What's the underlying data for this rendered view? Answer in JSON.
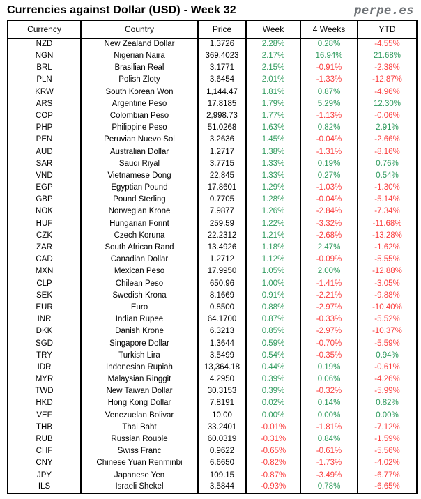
{
  "header": {
    "title": "Currencies against Dollar (USD) - Week 32",
    "brand": "perpe.es"
  },
  "colors": {
    "positive": "#2f9a5d",
    "negative": "#fb3e3e",
    "brand_gray": "#6e7276"
  },
  "chart_data": {
    "type": "table",
    "title": "Currencies against Dollar (USD) - Week 32",
    "columns": [
      "Currency",
      "Country",
      "Price",
      "Week",
      "4 Weeks",
      "YTD"
    ],
    "color_rule": "percent values >= 0 rendered green, < 0 rendered red",
    "rows": [
      [
        "NZD",
        "New Zealand Dollar",
        "1.3726",
        "2.28%",
        "0.28%",
        "-4.55%"
      ],
      [
        "NGN",
        "Nigerian Naira",
        "369.4023",
        "2.17%",
        "16.94%",
        "21.68%"
      ],
      [
        "BRL",
        "Brasilian Real",
        "3.1771",
        "2.15%",
        "-0.91%",
        "-2.38%"
      ],
      [
        "PLN",
        "Polish Zloty",
        "3.6454",
        "2.01%",
        "-1.33%",
        "-12.87%"
      ],
      [
        "KRW",
        "South Korean Won",
        "1,144.47",
        "1.81%",
        "0.87%",
        "-4.96%"
      ],
      [
        "ARS",
        "Argentine Peso",
        "17.8185",
        "1.79%",
        "5.29%",
        "12.30%"
      ],
      [
        "COP",
        "Colombian Peso",
        "2,998.73",
        "1.77%",
        "-1.13%",
        "-0.06%"
      ],
      [
        "PHP",
        "Philippine Peso",
        "51.0268",
        "1.63%",
        "0.82%",
        "2.91%"
      ],
      [
        "PEN",
        "Peruvian Nuevo Sol",
        "3.2636",
        "1.45%",
        "-0.04%",
        "-2.66%"
      ],
      [
        "AUD",
        "Australian Dollar",
        "1.2717",
        "1.38%",
        "-1.31%",
        "-8.16%"
      ],
      [
        "SAR",
        "Saudi Riyal",
        "3.7715",
        "1.33%",
        "0.19%",
        "0.76%"
      ],
      [
        "VND",
        "Vietnamese Dong",
        "22,845",
        "1.33%",
        "0.27%",
        "0.54%"
      ],
      [
        "EGP",
        "Egyptian Pound",
        "17.8601",
        "1.29%",
        "-1.03%",
        "-1.30%"
      ],
      [
        "GBP",
        "Pound Sterling",
        "0.7705",
        "1.28%",
        "-0.04%",
        "-5.14%"
      ],
      [
        "NOK",
        "Norwegian Krone",
        "7.9877",
        "1.26%",
        "-2.84%",
        "-7.34%"
      ],
      [
        "HUF",
        "Hungarian Forint",
        "259.59",
        "1.22%",
        "-3.32%",
        "-11.68%"
      ],
      [
        "CZK",
        "Czech Koruna",
        "22.2312",
        "1.21%",
        "-2.68%",
        "-13.28%"
      ],
      [
        "ZAR",
        "South African Rand",
        "13.4926",
        "1.18%",
        "2.47%",
        "-1.62%"
      ],
      [
        "CAD",
        "Canadian Dollar",
        "1.2712",
        "1.12%",
        "-0.09%",
        "-5.55%"
      ],
      [
        "MXN",
        "Mexican Peso",
        "17.9950",
        "1.05%",
        "2.00%",
        "-12.88%"
      ],
      [
        "CLP",
        "Chilean Peso",
        "650.96",
        "1.00%",
        "-1.41%",
        "-3.05%"
      ],
      [
        "SEK",
        "Swedish Krona",
        "8.1669",
        "0.91%",
        "-2.21%",
        "-9.88%"
      ],
      [
        "EUR",
        "Euro",
        "0.8500",
        "0.88%",
        "-2.97%",
        "-10.40%"
      ],
      [
        "INR",
        "Indian Rupee",
        "64.1700",
        "0.87%",
        "-0.33%",
        "-5.52%"
      ],
      [
        "DKK",
        "Danish Krone",
        "6.3213",
        "0.85%",
        "-2.97%",
        "-10.37%"
      ],
      [
        "SGD",
        "Singapore Dollar",
        "1.3644",
        "0.59%",
        "-0.70%",
        "-5.59%"
      ],
      [
        "TRY",
        "Turkish Lira",
        "3.5499",
        "0.54%",
        "-0.35%",
        "0.94%"
      ],
      [
        "IDR",
        "Indonesian Rupiah",
        "13,364.18",
        "0.44%",
        "0.19%",
        "-0.61%"
      ],
      [
        "MYR",
        "Malaysian Ringgit",
        "4.2950",
        "0.39%",
        "0.06%",
        "-4.26%"
      ],
      [
        "TWD",
        "New Taiwan Dollar",
        "30.3153",
        "0.39%",
        "-0.32%",
        "-5.99%"
      ],
      [
        "HKD",
        "Hong Kong Dollar",
        "7.8191",
        "0.02%",
        "0.14%",
        "0.82%"
      ],
      [
        "VEF",
        "Venezuelan Bolivar",
        "10.00",
        "0.00%",
        "0.00%",
        "0.00%"
      ],
      [
        "THB",
        "Thai Baht",
        "33.2401",
        "-0.01%",
        "-1.81%",
        "-7.12%"
      ],
      [
        "RUB",
        "Russian Rouble",
        "60.0319",
        "-0.31%",
        "0.84%",
        "-1.59%"
      ],
      [
        "CHF",
        "Swiss Franc",
        "0.9622",
        "-0.65%",
        "-0.61%",
        "-5.56%"
      ],
      [
        "CNY",
        "Chinese Yuan Renminbi",
        "6.6650",
        "-0.82%",
        "-1.73%",
        "-4.02%"
      ],
      [
        "JPY",
        "Japanese Yen",
        "109.15",
        "-0.87%",
        "-3.49%",
        "-6.77%"
      ],
      [
        "ILS",
        "Israeli Shekel",
        "3.5844",
        "-0.93%",
        "0.78%",
        "-6.65%"
      ]
    ]
  }
}
